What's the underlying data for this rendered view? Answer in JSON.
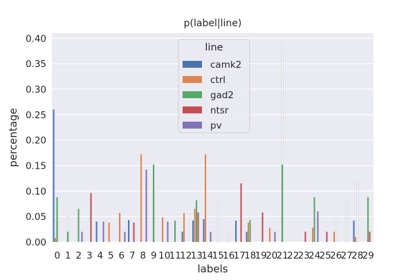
{
  "chart_data": {
    "type": "bar",
    "title": "p(label|line)",
    "xlabel": "labels",
    "ylabel": "percentage",
    "ylim": [
      0,
      0.41
    ],
    "grid": true,
    "background": "#EAEAF2",
    "legend": {
      "title": "line",
      "placement": "top-center"
    },
    "yticks": [
      "0.00",
      "0.05",
      "0.10",
      "0.15",
      "0.20",
      "0.25",
      "0.30",
      "0.35",
      "0.40"
    ],
    "categories": [
      "0",
      "1",
      "2",
      "3",
      "4",
      "5",
      "6",
      "7",
      "8",
      "9",
      "10",
      "11",
      "12",
      "13",
      "14",
      "15",
      "16",
      "17",
      "18",
      "19",
      "20",
      "21",
      "22",
      "23",
      "24",
      "25",
      "26",
      "27",
      "28",
      "29"
    ],
    "series": [
      {
        "name": "camk2",
        "color": "#4C72B0",
        "values": [
          0.26,
          0.0,
          0.0,
          0.0,
          0.04,
          0.0,
          0.0,
          0.043,
          0.0,
          0.0,
          0.0,
          0.0,
          0.02,
          0.042,
          0.045,
          0.0,
          0.0,
          0.042,
          0.02,
          0.0,
          0.0,
          0.0,
          0.0,
          0.0,
          0.0,
          0.0,
          0.0,
          0.0,
          0.042,
          0.0
        ]
      },
      {
        "name": "ctrl",
        "color": "#DD8452",
        "values": [
          0.008,
          0.0,
          0.0,
          0.0,
          0.0,
          0.038,
          0.057,
          0.0,
          0.172,
          0.0,
          0.048,
          0.0,
          0.057,
          0.065,
          0.172,
          0.0,
          0.0,
          0.0,
          0.038,
          0.0,
          0.028,
          0.0,
          0.0,
          0.0,
          0.028,
          0.0,
          0.02,
          0.0,
          0.01,
          0.0
        ]
      },
      {
        "name": "gad2",
        "color": "#55A868",
        "values": [
          0.088,
          0.02,
          0.065,
          0.0,
          0.0,
          0.0,
          0.0,
          0.0,
          0.0,
          0.152,
          0.0,
          0.042,
          0.0,
          0.082,
          0.0,
          0.0,
          0.0,
          0.0,
          0.043,
          0.0,
          0.0,
          0.152,
          0.0,
          0.0,
          0.088,
          0.0,
          0.0,
          0.0,
          0.0,
          0.088
        ]
      },
      {
        "name": "ntsr",
        "color": "#C44E52",
        "values": [
          0.0,
          0.0,
          0.0,
          0.096,
          0.0,
          0.0,
          0.0,
          0.038,
          0.0,
          0.0,
          0.0,
          0.0,
          0.0,
          0.058,
          0.0,
          0.0,
          0.0,
          0.115,
          0.0,
          0.058,
          0.0,
          0.0,
          0.0,
          0.02,
          0.0,
          0.02,
          0.0,
          0.0,
          0.0,
          0.02
        ]
      },
      {
        "name": "pv",
        "color": "#8172B3",
        "values": [
          0.0,
          0.0,
          0.02,
          0.0,
          0.04,
          0.0,
          0.02,
          0.0,
          0.142,
          0.0,
          0.04,
          0.0,
          0.0,
          0.0,
          0.02,
          0.0,
          0.0,
          0.0,
          0.0,
          0.0,
          0.02,
          0.0,
          0.0,
          0.0,
          0.06,
          0.0,
          0.0,
          0.0,
          0.0,
          0.0
        ]
      }
    ],
    "faint_bars_note": "light outlined companion bars drawn at lower alpha",
    "faint_values": [
      0.04,
      0.05,
      0.0,
      0.0,
      0.0,
      0.0,
      0.0,
      0.0,
      0.0,
      0.1,
      0.0,
      0.0,
      0.0,
      0.0,
      0.0,
      0.08,
      0.02,
      0.0,
      0.0,
      0.0,
      0.0,
      0.39,
      0.0,
      0.0,
      0.0,
      0.0,
      0.04,
      0.08,
      0.115,
      0.0
    ]
  }
}
